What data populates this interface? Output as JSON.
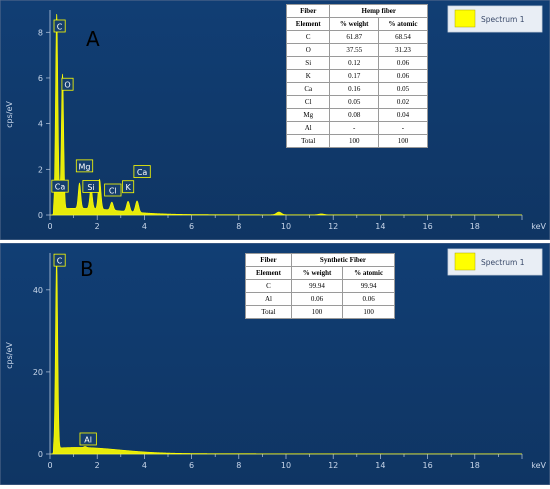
{
  "chart_data": [
    {
      "type": "line",
      "panel_label": "A",
      "xlabel": "keV",
      "ylabel": "cps/eV",
      "xlim": [
        0,
        20
      ],
      "ylim": [
        0,
        8.8
      ],
      "x_ticks": [
        0,
        2,
        4,
        6,
        8,
        10,
        12,
        14,
        16,
        18
      ],
      "y_ticks": [
        0,
        2,
        4,
        6,
        8
      ],
      "legend": "Spectrum 1",
      "series_color": "#ffff00",
      "peaks": [
        {
          "label": "C",
          "x": 0.28,
          "y": 8.1
        },
        {
          "label": "O",
          "x": 0.53,
          "y": 5.9
        },
        {
          "label": "Ca",
          "x": 0.34,
          "y": 1.0
        },
        {
          "label": "Mg",
          "x": 1.25,
          "y": 1.1
        },
        {
          "label": "Si",
          "x": 1.74,
          "y": 0.9
        },
        {
          "label": "Cl",
          "x": 2.62,
          "y": 0.35
        },
        {
          "label": "K",
          "x": 3.31,
          "y": 0.45
        },
        {
          "label": "Ca",
          "x": 3.69,
          "y": 0.5
        }
      ],
      "extra_peaks": [
        {
          "x": 2.1,
          "y": 1.3
        },
        {
          "x": 9.7,
          "y": 0.12
        },
        {
          "x": 11.5,
          "y": 0.04
        }
      ],
      "table": {
        "header1": [
          "Fiber",
          "Hemp fiber"
        ],
        "header2": [
          "Element",
          "% weight",
          "% atomic"
        ],
        "rows": [
          [
            "C",
            "61.87",
            "68.54"
          ],
          [
            "O",
            "37.55",
            "31.23"
          ],
          [
            "Si",
            "0.12",
            "0.06"
          ],
          [
            "K",
            "0.17",
            "0.06"
          ],
          [
            "Ca",
            "0.16",
            "0.05"
          ],
          [
            "Cl",
            "0.05",
            "0.02"
          ],
          [
            "Mg",
            "0.08",
            "0.04"
          ],
          [
            "Al",
            "-",
            "-"
          ],
          [
            "Total",
            "100",
            "100"
          ]
        ]
      }
    },
    {
      "type": "line",
      "panel_label": "B",
      "xlabel": "keV",
      "ylabel": "cps/eV",
      "xlim": [
        0,
        20
      ],
      "ylim": [
        0,
        48
      ],
      "x_ticks": [
        0,
        2,
        4,
        6,
        8,
        10,
        12,
        14,
        16,
        18
      ],
      "y_ticks": [
        0,
        20,
        40
      ],
      "legend": "Spectrum 1",
      "series_color": "#ffff00",
      "peaks": [
        {
          "label": "C",
          "x": 0.28,
          "y": 46.5
        },
        {
          "label": "Al",
          "x": 1.49,
          "y": 0.25
        }
      ],
      "extra_peaks": [],
      "table": {
        "header1": [
          "Fiber",
          "Synthetic Fiber"
        ],
        "header2": [
          "Element",
          "% weight",
          "% atomic"
        ],
        "rows": [
          [
            "C",
            "99.94",
            "99.94"
          ],
          [
            "Al",
            "0.06",
            "0.06"
          ],
          [
            "Total",
            "100",
            "100"
          ]
        ]
      }
    }
  ]
}
